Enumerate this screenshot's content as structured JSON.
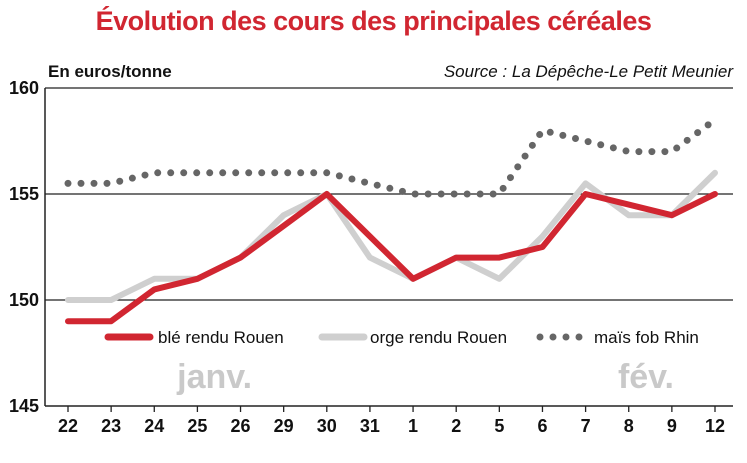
{
  "chart_data": {
    "type": "line",
    "title": "Évolution des cours des principales céréales",
    "ylabel": "En euros/tonne",
    "source": "Source : La Dépêche-Le Petit Meunier",
    "categories": [
      "22",
      "23",
      "24",
      "25",
      "26",
      "29",
      "30",
      "31",
      "1",
      "2",
      "5",
      "6",
      "7",
      "8",
      "9",
      "12"
    ],
    "ylim": [
      145,
      160
    ],
    "yticks": [
      145,
      150,
      155,
      160
    ],
    "grid": true,
    "months": [
      {
        "label": "janv.",
        "at_index": 3.4
      },
      {
        "label": "fév.",
        "at_index": 13.4
      }
    ],
    "series": [
      {
        "name": "blé rendu Rouen",
        "color": "#d12631",
        "style": "solid",
        "values": [
          149,
          149,
          150.5,
          151,
          152,
          153.5,
          155,
          153,
          151,
          152,
          152,
          152.5,
          155,
          154.5,
          154,
          155
        ]
      },
      {
        "name": "orge rendu Rouen",
        "color": "#cfcfcf",
        "style": "solid",
        "values": [
          150,
          150,
          151,
          151,
          152,
          154,
          155,
          152,
          151,
          152,
          151,
          153,
          155.5,
          154,
          154,
          156
        ]
      },
      {
        "name": "maïs fob Rhin",
        "color": "#666666",
        "style": "dotted",
        "values": [
          155.5,
          155.5,
          156,
          156,
          156,
          156,
          156,
          155.5,
          155,
          155,
          155,
          158,
          157.5,
          157,
          157,
          158.5
        ]
      }
    ]
  }
}
